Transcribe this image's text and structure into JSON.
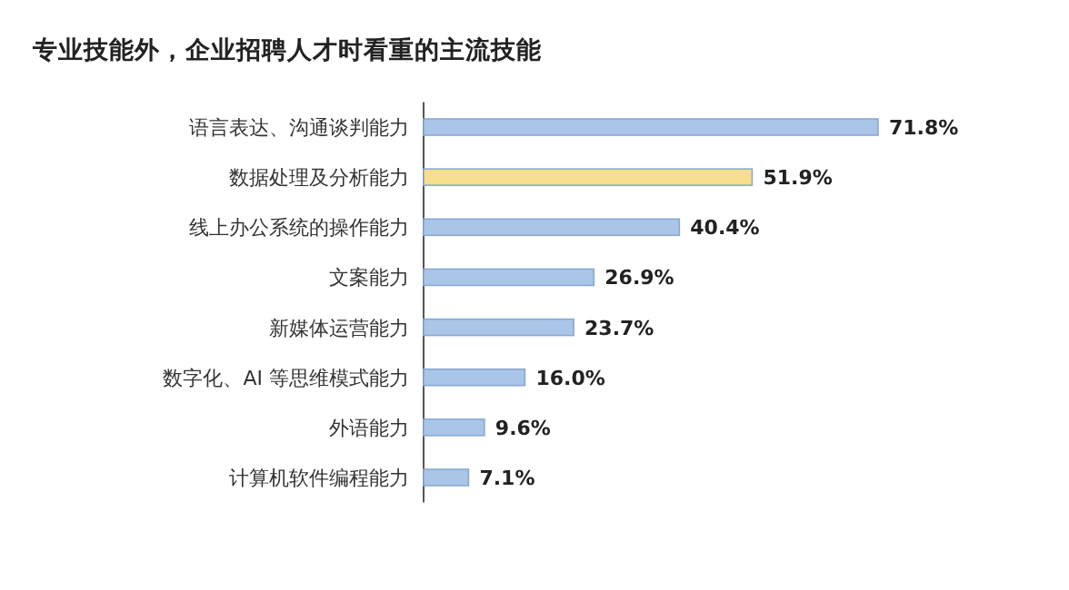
{
  "chart_data": {
    "type": "bar",
    "orientation": "horizontal",
    "title": "专业技能外，企业招聘人才时看重的主流技能",
    "categories": [
      "语言表达、沟通谈判能力",
      "数据处理及分析能力",
      "线上办公系统的操作能力",
      "文案能力",
      "新媒体运营能力",
      "数字化、AI 等思维模式能力",
      "外语能力",
      "计算机软件编程能力"
    ],
    "values": [
      71.8,
      51.9,
      40.4,
      26.9,
      23.7,
      16.0,
      9.6,
      7.1
    ],
    "value_labels": [
      "71.8%",
      "51.9%",
      "40.4%",
      "26.9%",
      "23.7%",
      "16.0%",
      "9.6%",
      "7.1%"
    ],
    "colors": [
      "#a9c5e8",
      "#f7de8c",
      "#a9c5e8",
      "#a9c5e8",
      "#a9c5e8",
      "#a9c5e8",
      "#a9c5e8",
      "#a9c5e8"
    ]
  }
}
